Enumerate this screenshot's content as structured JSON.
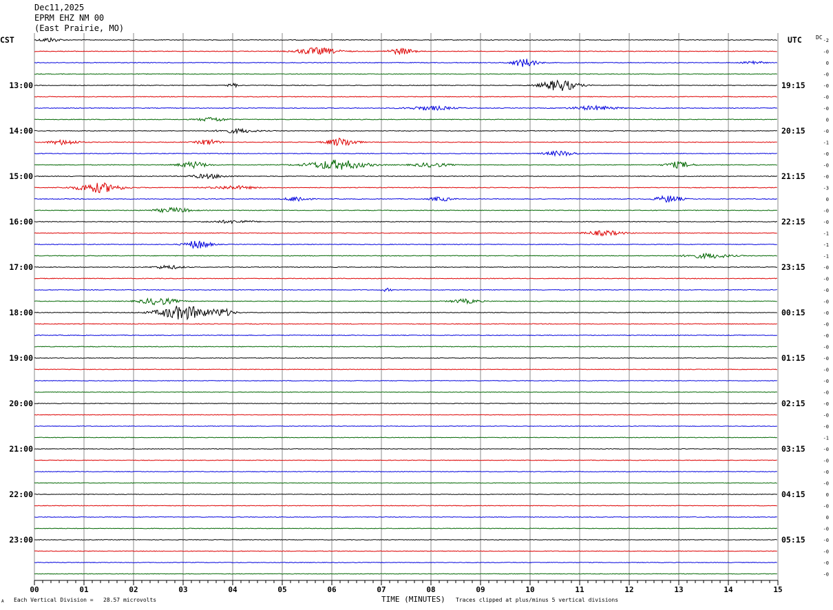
{
  "header": {
    "date": "Dec11,2025",
    "station": "EPRM EHZ NM 00",
    "location": "(East Prairie, MO)"
  },
  "left_tz": "CST",
  "right_tz": "UTC",
  "dc_label": "DC",
  "footer": {
    "corner": "A",
    "scale": "Each Vertical Division =   28.57 microvolts",
    "xlabel": "TIME (MINUTES)",
    "clip_note": "Traces clipped at plus/minus 5 vertical divisions"
  },
  "chart_data": {
    "type": "line",
    "title": "",
    "xlabel": "TIME (MINUTES)",
    "ylabel": "",
    "xlim": [
      0,
      15
    ],
    "x_ticks": [
      "00",
      "01",
      "02",
      "03",
      "04",
      "05",
      "06",
      "07",
      "08",
      "09",
      "10",
      "11",
      "12",
      "13",
      "14",
      "15"
    ],
    "trace_minutes": 15,
    "trace_count": 48,
    "color_cycle": [
      "#000000",
      "#dd0000",
      "#0000dd",
      "#006600"
    ],
    "left_labels": [
      {
        "trace": 4,
        "text": "13:00"
      },
      {
        "trace": 8,
        "text": "14:00"
      },
      {
        "trace": 12,
        "text": "15:00"
      },
      {
        "trace": 16,
        "text": "16:00"
      },
      {
        "trace": 20,
        "text": "17:00"
      },
      {
        "trace": 24,
        "text": "18:00"
      },
      {
        "trace": 28,
        "text": "19:00"
      },
      {
        "trace": 32,
        "text": "20:00"
      },
      {
        "trace": 36,
        "text": "21:00"
      },
      {
        "trace": 40,
        "text": "22:00"
      },
      {
        "trace": 44,
        "text": "23:00"
      }
    ],
    "right_labels": [
      {
        "trace": 4,
        "text": "19:15"
      },
      {
        "trace": 8,
        "text": "20:15"
      },
      {
        "trace": 12,
        "text": "21:15"
      },
      {
        "trace": 16,
        "text": "22:15"
      },
      {
        "trace": 20,
        "text": "23:15"
      },
      {
        "trace": 24,
        "text": "00:15"
      },
      {
        "trace": 28,
        "text": "01:15"
      },
      {
        "trace": 32,
        "text": "02:15"
      },
      {
        "trace": 36,
        "text": "03:15"
      },
      {
        "trace": 40,
        "text": "04:15"
      },
      {
        "trace": 44,
        "text": "05:15"
      }
    ],
    "dc_offsets": [
      "-2",
      "-0",
      "0",
      "-0",
      "-0",
      "-0",
      "-0",
      "0",
      "-0",
      "-1",
      "-0",
      "-0",
      "-0",
      "-3",
      "0",
      "-0",
      "-0",
      "-1",
      "-1",
      "-1",
      "-0",
      "-0",
      "-0",
      "-0",
      "-0",
      "-0",
      "-0",
      "-0",
      "-0",
      "-0",
      "-0",
      "-0",
      "-0",
      "-0",
      "-0",
      "-1",
      "-0",
      "-0",
      "-0",
      "-0",
      "0",
      "-0",
      "0",
      "-0",
      "-0",
      "-0",
      "-0",
      "-0"
    ],
    "noise_level": [
      0.5,
      0.5,
      0.5,
      0.5,
      0.5,
      0.5,
      0.5,
      0.5,
      0.5,
      0.5,
      0.5,
      0.5,
      0.5,
      0.5,
      0.5,
      0.5,
      0.5,
      0.5,
      0.5,
      0.5,
      0.5,
      0.5,
      0.5,
      0.5,
      0.5,
      0.5,
      0.5,
      0.5,
      0.45,
      0.45,
      0.45,
      0.45,
      0.45,
      0.45,
      0.45,
      0.45,
      0.45,
      0.45,
      0.45,
      0.45,
      0.45,
      0.45,
      0.45,
      0.45,
      0.45,
      0.45,
      0.45,
      0.45
    ],
    "bursts": [
      {
        "trace": 0,
        "minute": 0.3,
        "width": 0.3,
        "amp": 3
      },
      {
        "trace": 1,
        "minute": 5.7,
        "width": 0.6,
        "amp": 5
      },
      {
        "trace": 1,
        "minute": 7.4,
        "width": 0.35,
        "amp": 4.5
      },
      {
        "trace": 2,
        "minute": 9.9,
        "width": 0.35,
        "amp": 6
      },
      {
        "trace": 2,
        "minute": 14.5,
        "width": 0.25,
        "amp": 3
      },
      {
        "trace": 4,
        "minute": 10.6,
        "width": 0.5,
        "amp": 8
      },
      {
        "trace": 4,
        "minute": 4.0,
        "width": 0.15,
        "amp": 3
      },
      {
        "trace": 6,
        "minute": 8.0,
        "width": 0.6,
        "amp": 3
      },
      {
        "trace": 6,
        "minute": 11.3,
        "width": 0.6,
        "amp": 3
      },
      {
        "trace": 7,
        "minute": 3.6,
        "width": 0.4,
        "amp": 3
      },
      {
        "trace": 8,
        "minute": 4.1,
        "width": 0.5,
        "amp": 3
      },
      {
        "trace": 9,
        "minute": 0.6,
        "width": 0.4,
        "amp": 3.5
      },
      {
        "trace": 9,
        "minute": 3.5,
        "width": 0.3,
        "amp": 4
      },
      {
        "trace": 9,
        "minute": 6.2,
        "width": 0.4,
        "amp": 6
      },
      {
        "trace": 10,
        "minute": 10.6,
        "width": 0.4,
        "amp": 3.5
      },
      {
        "trace": 11,
        "minute": 3.2,
        "width": 0.4,
        "amp": 4.5
      },
      {
        "trace": 11,
        "minute": 6.1,
        "width": 0.8,
        "amp": 7
      },
      {
        "trace": 11,
        "minute": 8.0,
        "width": 0.5,
        "amp": 3
      },
      {
        "trace": 11,
        "minute": 13.0,
        "width": 0.35,
        "amp": 4.5
      },
      {
        "trace": 12,
        "minute": 3.5,
        "width": 0.5,
        "amp": 3
      },
      {
        "trace": 13,
        "minute": 1.3,
        "width": 0.6,
        "amp": 7
      },
      {
        "trace": 13,
        "minute": 4.0,
        "width": 0.6,
        "amp": 2.5
      },
      {
        "trace": 14,
        "minute": 5.3,
        "width": 0.3,
        "amp": 4
      },
      {
        "trace": 14,
        "minute": 8.2,
        "width": 0.3,
        "amp": 3
      },
      {
        "trace": 14,
        "minute": 12.8,
        "width": 0.35,
        "amp": 5
      },
      {
        "trace": 15,
        "minute": 2.8,
        "width": 0.5,
        "amp": 3.5
      },
      {
        "trace": 16,
        "minute": 4.0,
        "width": 0.6,
        "amp": 2
      },
      {
        "trace": 17,
        "minute": 11.5,
        "width": 0.5,
        "amp": 3.5
      },
      {
        "trace": 18,
        "minute": 3.3,
        "width": 0.35,
        "amp": 6
      },
      {
        "trace": 19,
        "minute": 13.6,
        "width": 0.6,
        "amp": 3.5
      },
      {
        "trace": 20,
        "minute": 2.7,
        "width": 0.4,
        "amp": 2.5
      },
      {
        "trace": 22,
        "minute": 7.1,
        "width": 0.15,
        "amp": 2
      },
      {
        "trace": 23,
        "minute": 2.5,
        "width": 0.5,
        "amp": 5
      },
      {
        "trace": 23,
        "minute": 8.7,
        "width": 0.4,
        "amp": 3
      },
      {
        "trace": 24,
        "minute": 3.0,
        "width": 0.7,
        "amp": 10
      },
      {
        "trace": 24,
        "minute": 3.8,
        "width": 0.3,
        "amp": 5
      }
    ]
  }
}
